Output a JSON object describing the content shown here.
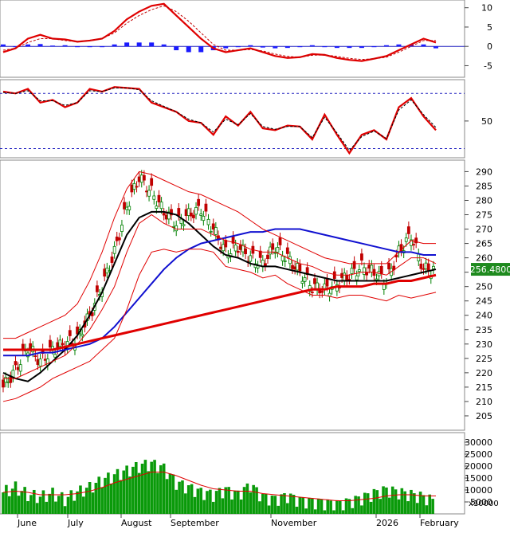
{
  "chart_data": [
    {
      "panel": "MACD",
      "type": "line",
      "ylim": [
        -8,
        12
      ],
      "y_ticks": [
        10,
        5,
        0,
        -5
      ],
      "series": [
        {
          "values": [
            -1.5,
            -0.5,
            2,
            3,
            2,
            1.8,
            1.2,
            1.5,
            2,
            4,
            7,
            9,
            10.5,
            11,
            8,
            5,
            2,
            -0.5,
            -1.5,
            -1,
            -0.5,
            -1.5,
            -2.5,
            -3,
            -2.8,
            -2,
            -2.2,
            -3,
            -3.5,
            -3.8,
            -3.2,
            -2.5,
            -1,
            0.5,
            2,
            1
          ]
        },
        {
          "values": [
            -1,
            -0.5,
            1,
            2,
            2,
            1.5,
            1.2,
            1.5,
            2,
            3.5,
            6,
            8,
            9.5,
            10.5,
            9,
            6.5,
            3.5,
            0.5,
            -1,
            -1,
            -0.8,
            -1.2,
            -2,
            -2.6,
            -2.8,
            -2.3,
            -2.2,
            -2.6,
            -3.1,
            -3.4,
            -3.2,
            -2.8,
            -1.5,
            0,
            1.5,
            1.5
          ]
        },
        {
          "values": [
            0.5,
            0,
            0.5,
            0.6,
            0.2,
            0.3,
            0,
            0,
            0,
            0.5,
            1,
            1,
            1,
            0.5,
            -1,
            -1.5,
            -1.5,
            -1,
            -0.5,
            0,
            0.3,
            -0.3,
            -0.5,
            -0.4,
            0,
            0.3,
            0,
            -0.4,
            -0.4,
            -0.4,
            0,
            0.3,
            0.5,
            0.5,
            0.5,
            -0.5
          ]
        }
      ]
    },
    {
      "panel": "RSI",
      "type": "line",
      "ylim": [
        10,
        95
      ],
      "y_ticks": [
        50
      ],
      "reference_levels": [
        80,
        20
      ],
      "series": [
        {
          "values": [
            82,
            80,
            85,
            70,
            73,
            65,
            70,
            85,
            82,
            87,
            86,
            85,
            70,
            65,
            60,
            50,
            48,
            35,
            55,
            45,
            60,
            42,
            40,
            45,
            44,
            30,
            57,
            35,
            15,
            35,
            40,
            30,
            65,
            75,
            55,
            40
          ]
        },
        {
          "values": [
            81,
            80,
            83,
            72,
            72,
            67,
            70,
            83,
            82,
            86,
            86,
            84,
            72,
            66,
            60,
            52,
            48,
            38,
            52,
            46,
            58,
            44,
            41,
            44,
            44,
            32,
            54,
            37,
            18,
            33,
            39,
            31,
            62,
            73,
            57,
            43
          ]
        }
      ]
    },
    {
      "panel": "Price",
      "type": "line",
      "ylim": [
        200,
        294
      ],
      "y_ticks": [
        290,
        285,
        280,
        275,
        270,
        265,
        260,
        255,
        250,
        245,
        240,
        235,
        230,
        225,
        220,
        215,
        210,
        205
      ],
      "last_price_label": "256.4800",
      "x_tick_labels": [
        "June",
        "July",
        "August",
        "September",
        "November",
        "2026",
        "February"
      ],
      "close": [
        215,
        221,
        229,
        224,
        228,
        230,
        232,
        240,
        250,
        262,
        278,
        288,
        283,
        276,
        272,
        275,
        277,
        270,
        262,
        264,
        260,
        258,
        264,
        260,
        255,
        250,
        249,
        251,
        254,
        257,
        255,
        252,
        262,
        268,
        256,
        256
      ],
      "series": [
        {
          "values": [
            220,
            218,
            217,
            220,
            224,
            228,
            233,
            240,
            248,
            258,
            268,
            274,
            276,
            276,
            275,
            272,
            268,
            264,
            261,
            260,
            258,
            257,
            257,
            256,
            255,
            254,
            253,
            252,
            252,
            252,
            252,
            252,
            253,
            254,
            255,
            256
          ]
        },
        {
          "values": [
            226,
            226,
            226,
            227,
            227,
            228,
            229,
            230,
            232,
            236,
            241,
            246,
            251,
            256,
            260,
            263,
            265,
            266,
            267,
            268,
            269,
            269,
            270,
            270,
            270,
            269,
            268,
            267,
            266,
            265,
            264,
            263,
            262,
            262,
            261,
            261
          ]
        },
        {
          "values": [
            228,
            228,
            228,
            228,
            228,
            229,
            230,
            231,
            232,
            233,
            234,
            235,
            236,
            237,
            238,
            239,
            240,
            241,
            242,
            243,
            244,
            245,
            246,
            247,
            248,
            249,
            249,
            250,
            250,
            250,
            251,
            251,
            252,
            252,
            253,
            254
          ]
        },
        {
          "values": [
            232,
            232,
            234,
            236,
            238,
            240,
            244,
            252,
            262,
            274,
            284,
            290,
            289,
            287,
            285,
            283,
            282,
            280,
            278,
            276,
            273,
            270,
            268,
            266,
            264,
            262,
            260,
            259,
            258,
            258,
            258,
            258,
            262,
            266,
            265,
            265
          ]
        },
        {
          "values": [
            210,
            211,
            213,
            215,
            218,
            220,
            222,
            224,
            228,
            232,
            242,
            254,
            262,
            263,
            262,
            263,
            263,
            262,
            257,
            256,
            255,
            253,
            254,
            251,
            249,
            247,
            247,
            246,
            247,
            247,
            246,
            245,
            247,
            246,
            247,
            248
          ]
        },
        {
          "values": [
            218,
            218,
            220,
            222,
            224,
            226,
            230,
            235,
            242,
            250,
            262,
            272,
            275,
            272,
            270,
            270,
            270,
            268,
            266,
            265,
            263,
            262,
            262,
            260,
            258,
            257,
            255,
            254,
            254,
            255,
            255,
            254,
            257,
            260,
            260,
            258
          ]
        }
      ]
    },
    {
      "panel": "Volume",
      "type": "bar",
      "ylim": [
        0,
        34000
      ],
      "y_ticks": [
        30000,
        25000,
        20000,
        15000,
        10000,
        5000
      ],
      "unit_label": "x10000",
      "values": [
        9000,
        11000,
        8000,
        7000,
        8500,
        6000,
        9000,
        11000,
        14000,
        16000,
        18000,
        20000,
        21000,
        19000,
        13000,
        11000,
        9000,
        8000,
        10000,
        8000,
        12000,
        7000,
        6000,
        7500,
        5500,
        5000,
        4500,
        4000,
        5000,
        6500,
        8500,
        10000,
        9000,
        8000,
        7000,
        5000
      ],
      "moving_average": [
        9000,
        9500,
        9000,
        8000,
        8000,
        8000,
        8500,
        9500,
        11000,
        13000,
        14500,
        16000,
        17500,
        17500,
        16000,
        14000,
        12000,
        10500,
        10000,
        9500,
        9500,
        8500,
        8000,
        7500,
        7000,
        6500,
        6000,
        5500,
        5500,
        6000,
        6500,
        7500,
        8000,
        8000,
        7500,
        7500
      ]
    }
  ]
}
